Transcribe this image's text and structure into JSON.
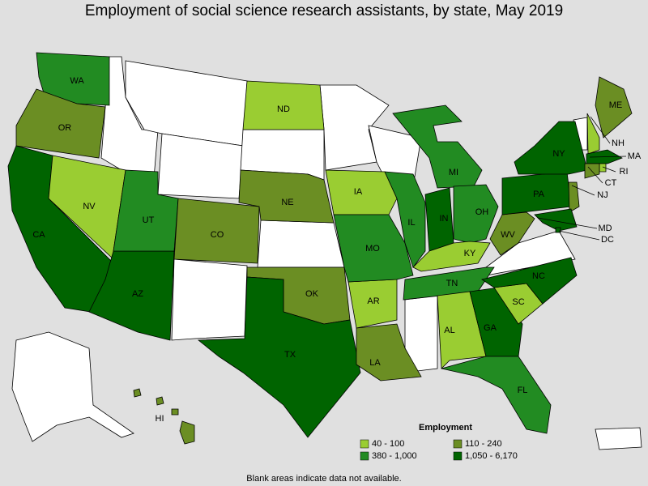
{
  "map": {
    "title": "Employment of social science research assistants, by state, May 2019",
    "states": [
      {
        "label": "WA",
        "color": "#228b22"
      },
      {
        "label": "OR",
        "color": "#6b8e23"
      },
      {
        "label": "CA",
        "color": "#006400"
      },
      {
        "label": "NV",
        "color": "#9acd32"
      },
      {
        "label": "AZ",
        "color": "#006400"
      },
      {
        "label": "UT",
        "color": "#228b22"
      },
      {
        "label": "CO",
        "color": "#6b8e23"
      },
      {
        "label": "ND",
        "color": "#9acd32"
      },
      {
        "label": "NE",
        "color": "#6b8e23"
      },
      {
        "label": "IA",
        "color": "#9acd32"
      },
      {
        "label": "OK",
        "color": "#6b8e23"
      },
      {
        "label": "TX",
        "color": "#006400"
      },
      {
        "label": "AR",
        "color": "#9acd32"
      },
      {
        "label": "LA",
        "color": "#6b8e23"
      },
      {
        "label": "MO",
        "color": "#228b22"
      },
      {
        "label": "IL",
        "color": "#228b22"
      },
      {
        "label": "IN",
        "color": "#006400"
      },
      {
        "label": "MI",
        "color": "#228b22"
      },
      {
        "label": "OH",
        "color": "#228b22"
      },
      {
        "label": "KY",
        "color": "#9acd32"
      },
      {
        "label": "TN",
        "color": "#228b22"
      },
      {
        "label": "AL",
        "color": "#9acd32"
      },
      {
        "label": "GA",
        "color": "#006400"
      },
      {
        "label": "FL",
        "color": "#228b22"
      },
      {
        "label": "SC",
        "color": "#9acd32"
      },
      {
        "label": "NC",
        "color": "#006400"
      },
      {
        "label": "WV",
        "color": "#6b8e23"
      },
      {
        "label": "PA",
        "color": "#006400"
      },
      {
        "label": "NY",
        "color": "#006400"
      },
      {
        "label": "ME",
        "color": "#6b8e23"
      },
      {
        "label": "NH",
        "color": "#9acd32"
      },
      {
        "label": "MA",
        "color": "#006400"
      },
      {
        "label": "RI",
        "color": "#9acd32"
      },
      {
        "label": "CT",
        "color": "#6b8e23"
      },
      {
        "label": "NJ",
        "color": "#6b8e23"
      },
      {
        "label": "MD",
        "color": "#006400"
      },
      {
        "label": "DC",
        "color": "#006400"
      },
      {
        "label": "HI",
        "color": "#6b8e23"
      }
    ],
    "legend": {
      "title": "Employment",
      "items": [
        {
          "label": "40 - 100",
          "color": "#9acd32"
        },
        {
          "label": "110 - 240",
          "color": "#6b8e23"
        },
        {
          "label": "380 - 1,000",
          "color": "#228b22"
        },
        {
          "label": "1,050 - 6,170",
          "color": "#006400"
        }
      ]
    },
    "footnote": "Blank areas indicate data not available."
  }
}
